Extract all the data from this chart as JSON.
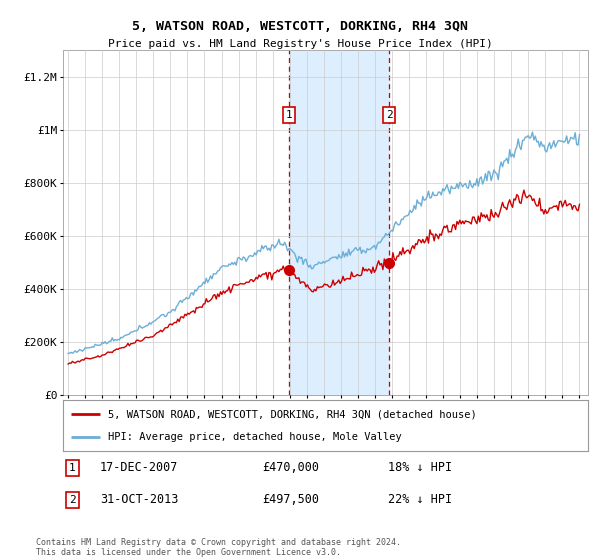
{
  "title": "5, WATSON ROAD, WESTCOTT, DORKING, RH4 3QN",
  "subtitle": "Price paid vs. HM Land Registry's House Price Index (HPI)",
  "legend_line1": "5, WATSON ROAD, WESTCOTT, DORKING, RH4 3QN (detached house)",
  "legend_line2": "HPI: Average price, detached house, Mole Valley",
  "footnote": "Contains HM Land Registry data © Crown copyright and database right 2024.\nThis data is licensed under the Open Government Licence v3.0.",
  "transaction1_date": "17-DEC-2007",
  "transaction1_price": "£470,000",
  "transaction1_note": "18% ↓ HPI",
  "transaction2_date": "31-OCT-2013",
  "transaction2_price": "£497,500",
  "transaction2_note": "22% ↓ HPI",
  "hpi_color": "#6baed6",
  "price_color": "#cc0000",
  "shaded_color": "#ddeeff",
  "transaction_box_color": "#cc0000",
  "background_color": "#ffffff",
  "ylim": [
    0,
    1300000
  ],
  "yticks": [
    0,
    200000,
    400000,
    600000,
    800000,
    1000000,
    1200000
  ],
  "ytick_labels": [
    "£0",
    "£200K",
    "£400K",
    "£600K",
    "£800K",
    "£1M",
    "£1.2M"
  ],
  "transaction1_year": 2007.96,
  "transaction2_year": 2013.83,
  "transaction1_value": 470000,
  "transaction2_value": 497500
}
